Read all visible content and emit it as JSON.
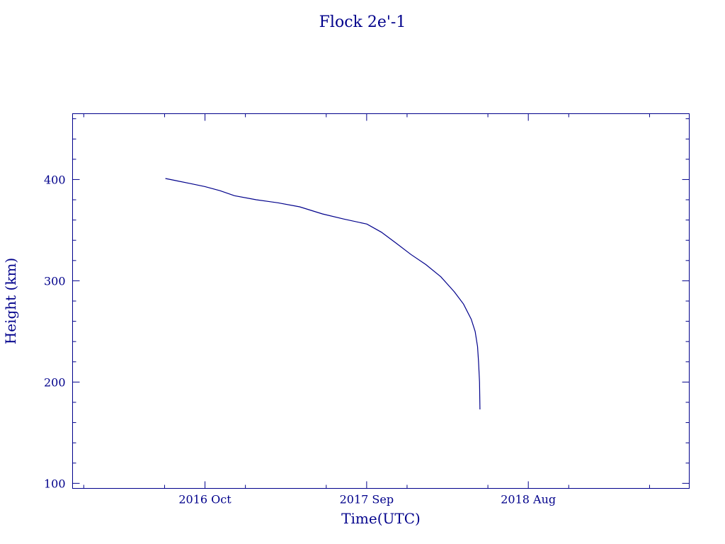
{
  "chart_data": {
    "type": "line",
    "title": "Flock 2e'-1",
    "xlabel": "Time(UTC)",
    "ylabel": "Height (km)",
    "x_ticks": [
      "2016 Oct",
      "2017 Sep",
      "2018 Aug"
    ],
    "y_ticks": [
      100,
      200,
      300,
      400
    ],
    "ylim": [
      95,
      465
    ],
    "xlim": [
      "2016-01-01",
      "2019-06-30"
    ],
    "grid": false,
    "colors": {
      "axes": "#00008b",
      "series": "#00008b",
      "background": "#ffffff"
    },
    "series": [
      {
        "x": [
          "2016-07-11",
          "2016-08-01",
          "2016-09-01",
          "2016-10-01",
          "2016-11-01",
          "2016-12-01",
          "2017-01-15",
          "2017-03-01",
          "2017-04-15",
          "2017-06-01",
          "2017-07-15",
          "2017-09-01",
          "2017-10-01",
          "2017-11-01",
          "2017-12-01",
          "2018-01-01",
          "2018-02-01",
          "2018-03-01",
          "2018-03-20",
          "2018-04-05",
          "2018-04-13",
          "2018-04-18",
          "2018-04-20",
          "2018-04-22",
          "2018-04-23"
        ],
        "y": [
          401,
          399,
          396,
          393,
          389,
          384,
          380,
          377,
          373,
          366,
          361,
          356,
          348,
          337,
          326,
          316,
          304,
          289,
          277,
          262,
          250,
          235,
          220,
          200,
          173
        ]
      }
    ]
  }
}
